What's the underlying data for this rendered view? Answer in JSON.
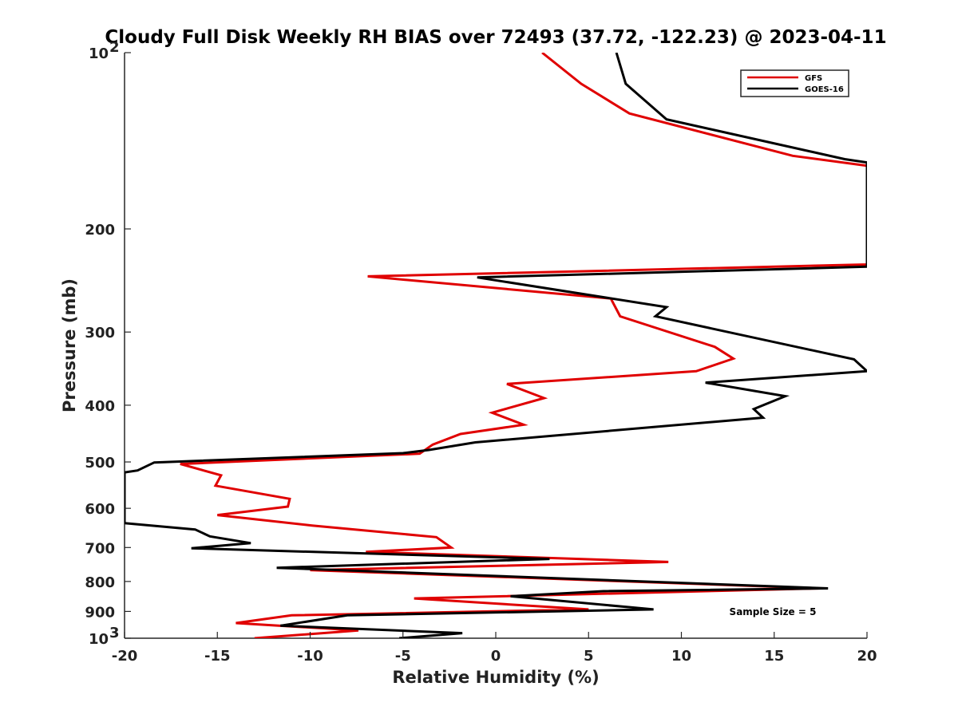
{
  "chart_data": {
    "type": "line",
    "title": "Cloudy Full Disk Weekly RH BIAS over 72493 (37.72, -122.23) @ 2023-04-11",
    "xlabel": "Relative Humidity (%)",
    "ylabel": "Pressure (mb)",
    "xlim": [
      -20,
      20
    ],
    "ylim": [
      100,
      1000
    ],
    "y_scale": "log",
    "y_reversed": true,
    "grid": false,
    "legend_position": "top-right",
    "annotation": "Sample Size = 5",
    "x_ticks": [
      "-20",
      "-15",
      "-10",
      "-5",
      "0",
      "5",
      "10",
      "15",
      "20"
    ],
    "y_ticks": [
      {
        "value": 100,
        "base": "10",
        "exp": "2"
      },
      {
        "value": 200,
        "label": "200"
      },
      {
        "value": 300,
        "label": "300"
      },
      {
        "value": 400,
        "label": "400"
      },
      {
        "value": 500,
        "label": "500"
      },
      {
        "value": 600,
        "label": "600"
      },
      {
        "value": 700,
        "label": "700"
      },
      {
        "value": 800,
        "label": "800"
      },
      {
        "value": 900,
        "label": "900"
      },
      {
        "value": 1000,
        "base": "10",
        "exp": "3"
      }
    ],
    "series": [
      {
        "name": "GFS",
        "color": "#e00000",
        "points": [
          [
            2.5,
            100
          ],
          [
            4.6,
            113
          ],
          [
            7.2,
            127
          ],
          [
            16,
            150
          ],
          [
            20,
            156
          ],
          [
            20,
            230
          ],
          [
            -6.9,
            241
          ],
          [
            6.2,
            263
          ],
          [
            6.7,
            282
          ],
          [
            11.8,
            318
          ],
          [
            12.8,
            333
          ],
          [
            10.8,
            350
          ],
          [
            0.6,
            368
          ],
          [
            2.6,
            389
          ],
          [
            -0.2,
            412
          ],
          [
            1.5,
            432
          ],
          [
            -1.9,
            448
          ],
          [
            -3.4,
            467
          ],
          [
            -4.1,
            484
          ],
          [
            -17,
            504
          ],
          [
            -14.8,
            527
          ],
          [
            -15.1,
            549
          ],
          [
            -11.1,
            578
          ],
          [
            -11.2,
            596
          ],
          [
            -15,
            616
          ],
          [
            -9.9,
            642
          ],
          [
            -3.2,
            672
          ],
          [
            -2.4,
            700
          ],
          [
            -7,
            712
          ],
          [
            9.3,
            741
          ],
          [
            -10,
            765
          ],
          [
            17.5,
            822
          ],
          [
            -4.4,
            855
          ],
          [
            5,
            893
          ],
          [
            -11,
            914
          ],
          [
            -14,
            942
          ],
          [
            -7.4,
            970
          ],
          [
            -13,
            1000
          ]
        ]
      },
      {
        "name": "GOES-16",
        "color": "#000000",
        "points": [
          [
            6.5,
            100
          ],
          [
            7,
            113
          ],
          [
            9.2,
            130
          ],
          [
            18.8,
            152
          ],
          [
            20,
            154
          ],
          [
            20,
            232
          ],
          [
            -1,
            242
          ],
          [
            9.2,
            272
          ],
          [
            8.6,
            282
          ],
          [
            19.3,
            334
          ],
          [
            20,
            350
          ],
          [
            11.3,
            366
          ],
          [
            15.6,
            386
          ],
          [
            13.9,
            406
          ],
          [
            14.4,
            420
          ],
          [
            -1.1,
            463
          ],
          [
            -3.6,
            477
          ],
          [
            -5,
            483
          ],
          [
            -18.4,
            501
          ],
          [
            -19.3,
            517
          ],
          [
            -20,
            521
          ],
          [
            -20,
            636
          ],
          [
            -16.2,
            652
          ],
          [
            -15.4,
            670
          ],
          [
            -13.2,
            688
          ],
          [
            -16.4,
            702
          ],
          [
            2.9,
            732
          ],
          [
            -11.8,
            758
          ],
          [
            17.9,
            822
          ],
          [
            5.8,
            831
          ],
          [
            0.8,
            848
          ],
          [
            8.5,
            893
          ],
          [
            -8,
            914
          ],
          [
            -11.6,
            952
          ],
          [
            -1.8,
            980
          ],
          [
            -5.2,
            1000
          ]
        ]
      }
    ]
  }
}
